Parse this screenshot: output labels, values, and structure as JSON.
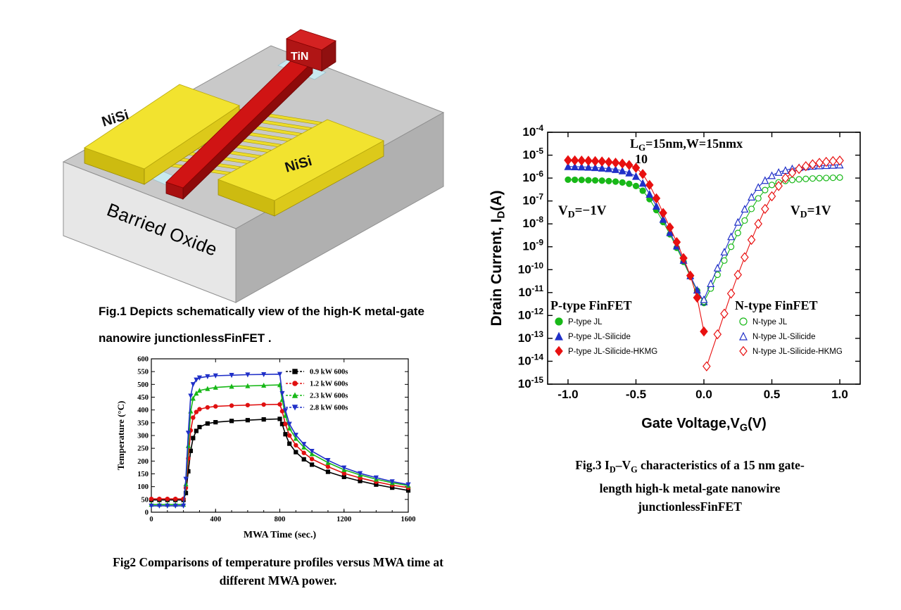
{
  "fig1": {
    "label_tin": "TiN",
    "label_nisi_left": "NiSi",
    "label_nisi_right": "NiSi",
    "label_oxide": "Barried Oxide",
    "caption_line1": "Fig.1 Depicts schematically view of the high-K metal-gate",
    "caption_line2": "nanowire junctionlessFinFET ."
  },
  "fig2_caption": {
    "line1": "Fig2 Comparisons of temperature profiles versus MWA time at",
    "line2": "different MWA power."
  },
  "fig3_caption": {
    "l1a": "Fig.3 I",
    "l1b": "D",
    "l1c": "–V",
    "l1d": "G",
    "l1e": " characteristics of a 15 nm gate-",
    "line2": "length high-k metal-gate nanowire",
    "line3": "junctionlessFinFET"
  },
  "chart_data": [
    {
      "id": "fig2",
      "type": "line",
      "title": "",
      "xlabel": "MWA Time (sec.)",
      "ylabel": "Temperature (°C)",
      "xlim": [
        0,
        1600
      ],
      "ylim": [
        0,
        600
      ],
      "xticks": [
        0,
        400,
        800,
        1200,
        1600
      ],
      "yticks": [
        0,
        50,
        100,
        150,
        200,
        250,
        300,
        350,
        400,
        450,
        500,
        550,
        600
      ],
      "legend_position": "top-right-inside",
      "grid": false,
      "x": [
        0,
        50,
        100,
        150,
        200,
        215,
        230,
        245,
        260,
        280,
        300,
        350,
        400,
        500,
        600,
        700,
        800,
        815,
        835,
        860,
        900,
        950,
        1000,
        1100,
        1200,
        1300,
        1400,
        1500,
        1600
      ],
      "series": [
        {
          "name": "0.9 kW 600s",
          "color": "#000000",
          "marker": "square",
          "y": [
            48,
            48,
            48,
            48,
            48,
            75,
            160,
            240,
            290,
            318,
            333,
            347,
            352,
            357,
            360,
            363,
            365,
            345,
            305,
            268,
            235,
            207,
            186,
            158,
            138,
            122,
            108,
            96,
            85
          ]
        },
        {
          "name": "1.2 kW 600s",
          "color": "#e01010",
          "marker": "circle",
          "y": [
            52,
            52,
            52,
            52,
            52,
            95,
            210,
            320,
            370,
            392,
            403,
            410,
            414,
            417,
            419,
            421,
            422,
            395,
            345,
            300,
            262,
            232,
            208,
            178,
            152,
            134,
            119,
            106,
            96
          ]
        },
        {
          "name": "2.3 kW 600s",
          "color": "#18b818",
          "marker": "triangle-up",
          "y": [
            30,
            30,
            30,
            30,
            30,
            110,
            260,
            395,
            445,
            465,
            476,
            483,
            488,
            492,
            494,
            496,
            498,
            440,
            378,
            328,
            288,
            254,
            228,
            194,
            166,
            146,
            129,
            115,
            104
          ]
        },
        {
          "name": "2.8 kW 600s",
          "color": "#2030c8",
          "marker": "triangle-down",
          "y": [
            25,
            25,
            25,
            25,
            25,
            130,
            310,
            455,
            500,
            518,
            526,
            531,
            534,
            536,
            538,
            539,
            540,
            465,
            398,
            345,
            302,
            266,
            239,
            203,
            174,
            152,
            135,
            120,
            108
          ]
        }
      ]
    },
    {
      "id": "fig3",
      "type": "scatter",
      "title": "",
      "xlabel_parts": {
        "pre": "Gate Voltage,V",
        "sub": "G",
        "post": "(V)"
      },
      "ylabel_parts": {
        "pre": "Drain Current, I",
        "sub": "D",
        "post": "(A)"
      },
      "xlim": [
        -1.15,
        1.15
      ],
      "ylog_exp_range": [
        -15,
        -4
      ],
      "xticks": [
        -1.0,
        -0.5,
        0.0,
        0.5,
        1.0
      ],
      "ytick_exponents": [
        -4,
        -5,
        -6,
        -7,
        -8,
        -9,
        -10,
        -11,
        -12,
        -13,
        -14,
        -15
      ],
      "grid": false,
      "annotations": {
        "size_note_line1": {
          "pre": "L",
          "sub": "G",
          "post": "=15nm,W=15nmx"
        },
        "size_note_line2": "10",
        "vd_left": {
          "pre": "V",
          "sub": "D",
          "post": "=−1V"
        },
        "vd_right": {
          "pre": "V",
          "sub": "D",
          "post": "=1V"
        }
      },
      "legend_left": {
        "title": "P-type FinFET",
        "items": [
          {
            "label": "P-type JL",
            "marker": "circle",
            "color": "#18b818",
            "filled": true
          },
          {
            "label": "P-type JL-Silicide",
            "marker": "triangle-up",
            "color": "#2030c8",
            "filled": true
          },
          {
            "label": "P-type JL-Silicide-HKMG",
            "marker": "diamond",
            "color": "#e81010",
            "filled": true
          }
        ]
      },
      "legend_right": {
        "title": "N-type FinFET",
        "items": [
          {
            "label": "N-type JL",
            "marker": "circle",
            "color": "#18b818",
            "filled": false
          },
          {
            "label": "N-type JL-Silicide",
            "marker": "triangle-up",
            "color": "#2030c8",
            "filled": false
          },
          {
            "label": "N-type JL-Silicide-HKMG",
            "marker": "diamond",
            "color": "#e81010",
            "filled": false
          }
        ]
      },
      "series": [
        {
          "name": "P-type JL",
          "marker": "circle",
          "color": "#18b818",
          "filled": true,
          "msize": 4,
          "x": [
            -1.0,
            -0.95,
            -0.9,
            -0.85,
            -0.8,
            -0.75,
            -0.7,
            -0.65,
            -0.6,
            -0.55,
            -0.5,
            -0.45,
            -0.4,
            -0.35,
            -0.3,
            -0.25,
            -0.2,
            -0.15,
            -0.1,
            -0.05,
            0.0
          ],
          "y": [
            8.5e-07,
            8.4e-07,
            8.3e-07,
            8.1e-07,
            7.9e-07,
            7.7e-07,
            7.4e-07,
            7e-07,
            6.4e-07,
            5.6e-07,
            4.5e-07,
            2.8e-07,
            1.2e-07,
            4e-08,
            1.2e-08,
            3.5e-09,
            9e-10,
            2.2e-10,
            5e-11,
            1.2e-11,
            3.5e-12
          ]
        },
        {
          "name": "P-type JL-Silicide",
          "marker": "triangle-up",
          "color": "#2030c8",
          "filled": true,
          "msize": 4.5,
          "x": [
            -1.0,
            -0.95,
            -0.9,
            -0.85,
            -0.8,
            -0.75,
            -0.7,
            -0.65,
            -0.6,
            -0.55,
            -0.5,
            -0.45,
            -0.4,
            -0.35,
            -0.3,
            -0.25,
            -0.2,
            -0.15,
            -0.1,
            -0.05,
            0.0
          ],
          "y": [
            3.2e-06,
            3.15e-06,
            3.1e-06,
            3e-06,
            2.9e-06,
            2.75e-06,
            2.6e-06,
            2.4e-06,
            2.1e-06,
            1.7e-06,
            1.2e-06,
            6e-07,
            2e-07,
            6e-08,
            1.6e-08,
            4.2e-09,
            1.1e-09,
            2.6e-10,
            5.5e-11,
            1.3e-11,
            4e-12
          ]
        },
        {
          "name": "P-type JL-Silicide-HKMG",
          "marker": "diamond",
          "color": "#e81010",
          "filled": true,
          "msize": 5,
          "x": [
            -1.0,
            -0.95,
            -0.9,
            -0.85,
            -0.8,
            -0.75,
            -0.7,
            -0.65,
            -0.6,
            -0.55,
            -0.5,
            -0.45,
            -0.4,
            -0.35,
            -0.3,
            -0.25,
            -0.2,
            -0.15,
            -0.1,
            -0.05,
            0.0
          ],
          "y": [
            6e-06,
            5.9e-06,
            5.8e-06,
            5.7e-06,
            5.5e-06,
            5.3e-06,
            5e-06,
            4.7e-06,
            4.3e-06,
            3.7e-06,
            2.8e-06,
            1.5e-06,
            5e-07,
            1.3e-07,
            3e-08,
            7e-09,
            1.6e-09,
            3.2e-10,
            5.5e-11,
            6e-12,
            2e-13
          ]
        },
        {
          "name": "N-type JL",
          "marker": "circle",
          "color": "#18b818",
          "filled": false,
          "msize": 4,
          "x": [
            0.0,
            0.05,
            0.1,
            0.15,
            0.2,
            0.25,
            0.3,
            0.35,
            0.4,
            0.45,
            0.5,
            0.55,
            0.6,
            0.65,
            0.7,
            0.75,
            0.8,
            0.85,
            0.9,
            0.95,
            1.0
          ],
          "y": [
            4e-12,
            1.5e-11,
            6e-11,
            2.5e-10,
            1e-09,
            4e-09,
            1.4e-08,
            4.5e-08,
            1.3e-07,
            3e-07,
            5e-07,
            6.5e-07,
            7.5e-07,
            8.2e-07,
            8.8e-07,
            9.2e-07,
            9.6e-07,
            9.9e-07,
            1.01e-06,
            1.03e-06,
            1.05e-06
          ]
        },
        {
          "name": "N-type JL-Silicide",
          "marker": "triangle-up",
          "color": "#2030c8",
          "filled": false,
          "msize": 4.5,
          "x": [
            0.0,
            0.05,
            0.1,
            0.15,
            0.2,
            0.25,
            0.3,
            0.35,
            0.4,
            0.45,
            0.5,
            0.55,
            0.6,
            0.65,
            0.7,
            0.75,
            0.8,
            0.85,
            0.9,
            0.95,
            1.0
          ],
          "y": [
            5e-12,
            2.5e-11,
            1.2e-10,
            6e-10,
            2.8e-09,
            1.2e-08,
            4.5e-08,
            1.5e-07,
            4e-07,
            8e-07,
            1.3e-06,
            1.8e-06,
            2.2e-06,
            2.6e-06,
            2.9e-06,
            3.15e-06,
            3.35e-06,
            3.5e-06,
            3.6e-06,
            3.7e-06,
            3.8e-06
          ]
        },
        {
          "name": "N-type JL-Silicide-HKMG",
          "marker": "diamond",
          "color": "#e81010",
          "filled": false,
          "msize": 5,
          "x": [
            0.02,
            0.1,
            0.15,
            0.2,
            0.25,
            0.3,
            0.35,
            0.4,
            0.45,
            0.5,
            0.55,
            0.6,
            0.65,
            0.7,
            0.75,
            0.8,
            0.85,
            0.9,
            0.95,
            1.0
          ],
          "y": [
            6e-15,
            1.5e-13,
            1.2e-12,
            9e-12,
            6e-11,
            3.5e-10,
            2e-09,
            1e-08,
            4.5e-08,
            1.6e-07,
            4.5e-07,
            1e-06,
            1.7e-06,
            2.5e-06,
            3.3e-06,
            4e-06,
            4.6e-06,
            5.1e-06,
            5.5e-06,
            5.8e-06
          ]
        }
      ]
    }
  ]
}
